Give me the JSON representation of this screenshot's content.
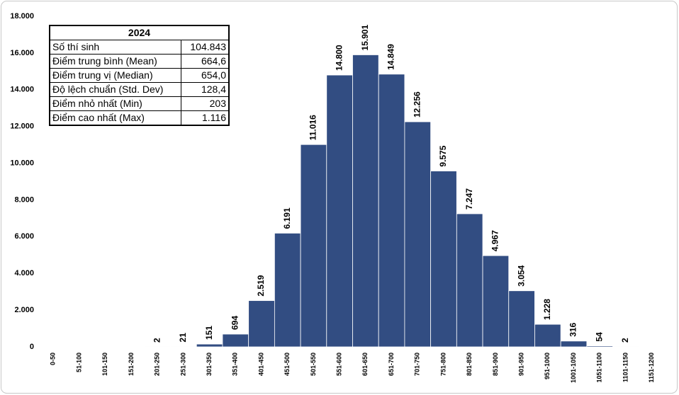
{
  "chart_data": {
    "type": "bar",
    "categories": [
      "0-50",
      "51-100",
      "101-150",
      "151-200",
      "201-250",
      "251-300",
      "301-350",
      "351-400",
      "401-450",
      "451-500",
      "501-550",
      "551-600",
      "601-650",
      "651-700",
      "701-750",
      "751-800",
      "801-850",
      "851-900",
      "901-950",
      "951-1000",
      "1001-1050",
      "1051-1100",
      "1101-1150",
      "1151-1200"
    ],
    "values": [
      0,
      0,
      0,
      0,
      2,
      21,
      151,
      694,
      2519,
      6191,
      11016,
      14800,
      15901,
      14849,
      12256,
      9575,
      7247,
      4967,
      3054,
      1228,
      316,
      54,
      2,
      0
    ],
    "value_labels": [
      null,
      null,
      null,
      null,
      "2",
      "21",
      "151",
      "694",
      "2.519",
      "6.191",
      "11.016",
      "14.800",
      "15.901",
      "14.849",
      "12.256",
      "9.575",
      "7.247",
      "4.967",
      "3.054",
      "1.228",
      "316",
      "54",
      "2",
      null
    ],
    "color": "#324d82",
    "ylim": [
      0,
      18000
    ],
    "yticks": [
      0,
      {
        "value": 2000,
        "label": "2.000"
      },
      {
        "value": 4000,
        "label": "4.000"
      },
      {
        "value": 6000,
        "label": "6.000"
      },
      {
        "value": 8000,
        "label": "8.000"
      },
      {
        "value": 10000,
        "label": "10.000"
      },
      {
        "value": 12000,
        "label": "12.000"
      },
      {
        "value": 14000,
        "label": "14.000"
      },
      {
        "value": 16000,
        "label": "16.000"
      },
      {
        "value": 18000,
        "label": "18.000"
      }
    ],
    "grid": false,
    "stats_table": {
      "title": "2024",
      "rows": [
        [
          "Số thí sinh",
          "104.843"
        ],
        [
          "Điểm trung bình (Mean)",
          "664,6"
        ],
        [
          "Điểm trung vị (Median)",
          "654,0"
        ],
        [
          "Độ lệch chuẩn (Std. Dev)",
          "128,4"
        ],
        [
          "Điểm nhỏ nhất (Min)",
          "203"
        ],
        [
          "Điểm cao nhất (Max)",
          "1.116"
        ]
      ]
    }
  }
}
